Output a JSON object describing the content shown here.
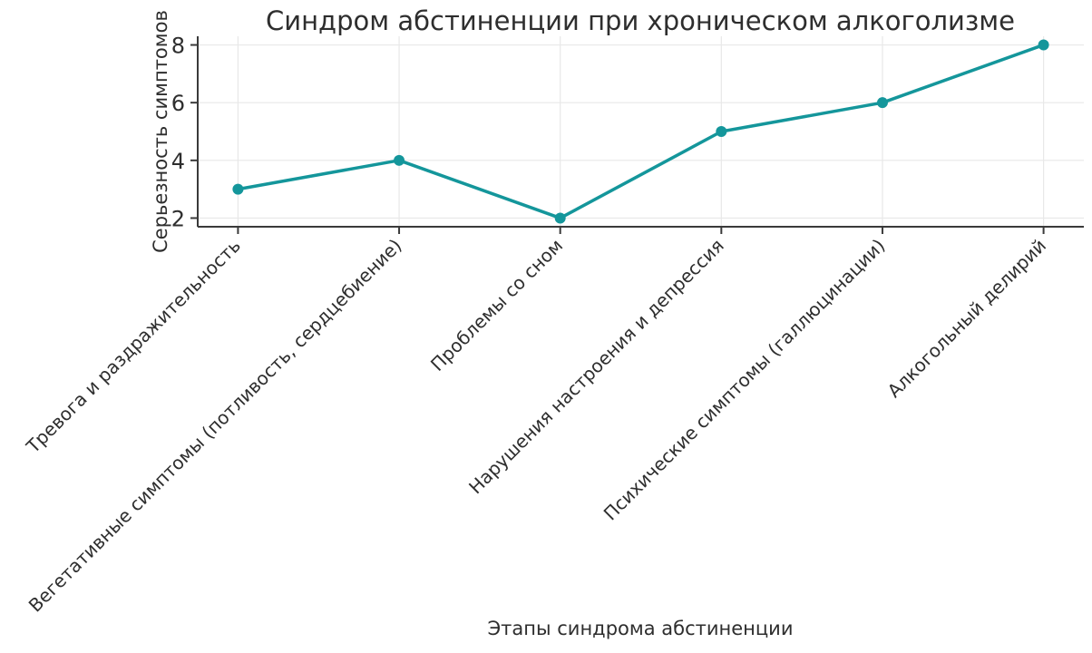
{
  "figure": {
    "background": "#ffffff"
  },
  "chart_data": {
    "type": "line",
    "title": "Синдром абстиненции при хроническом алкоголизме",
    "xlabel": "Этапы синдрома абстиненции",
    "ylabel": "Серьезность симптомов",
    "categories": [
      "Тревога и раздражительность",
      "Вегетативные симптомы (потливость, сердцебиение)",
      "Проблемы со сном",
      "Нарушения настроения и депрессия",
      "Психические симптомы (галлюцинации)",
      "Алкогольный делирий"
    ],
    "series": [
      {
        "name": "Серьезность симптомов",
        "values": [
          3,
          4,
          2,
          5,
          6,
          8
        ]
      }
    ],
    "yticks": [
      2,
      4,
      6,
      8
    ],
    "ylim": [
      1.7,
      8.3
    ],
    "grid": true,
    "legend": false,
    "xtick_rotation_deg": 45,
    "marker": "circle",
    "colors": {
      "line": "#14969b",
      "marker": "#14969b",
      "grid": "#e8e8e8",
      "spine": "#3a3a3a",
      "text": "#2e2e2e"
    }
  }
}
